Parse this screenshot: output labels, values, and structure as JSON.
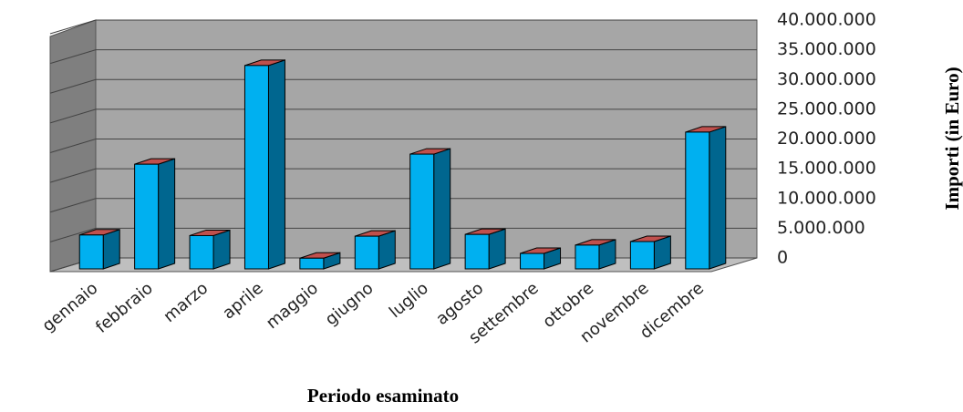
{
  "chart_data": {
    "type": "bar3d",
    "x_axis_label": "Periodo esaminato",
    "y_axis_label": "Importi (in Euro)",
    "categories": [
      "gennaio",
      "febbraio",
      "marzo",
      "aprile",
      "maggio",
      "giugno",
      "luglio",
      "agosto",
      "settembre",
      "ottobre",
      "novembre",
      "dicembre"
    ],
    "values": [
      5700000,
      17600000,
      5600000,
      34200000,
      1800000,
      5500000,
      19300000,
      5800000,
      2600000,
      4000000,
      4600000,
      23000000
    ],
    "color": "#00b0f0",
    "side_color": "#00668f",
    "top_color": "#c0504d",
    "ylim": [
      0,
      40000000
    ],
    "yticks": [
      0,
      {
        "value": 5000000,
        "label": "5.000.000"
      },
      {
        "value": 10000000,
        "label": "10.000.000"
      },
      {
        "value": 15000000,
        "label": "15.000.000"
      },
      {
        "value": 20000000,
        "label": "20.000.000"
      },
      {
        "value": 25000000,
        "label": "25.000.000"
      },
      {
        "value": 30000000,
        "label": "30.000.000"
      },
      {
        "value": 35000000,
        "label": "35.000.000"
      },
      {
        "value": 40000000,
        "label": "40.000.000"
      }
    ],
    "grid": true
  }
}
